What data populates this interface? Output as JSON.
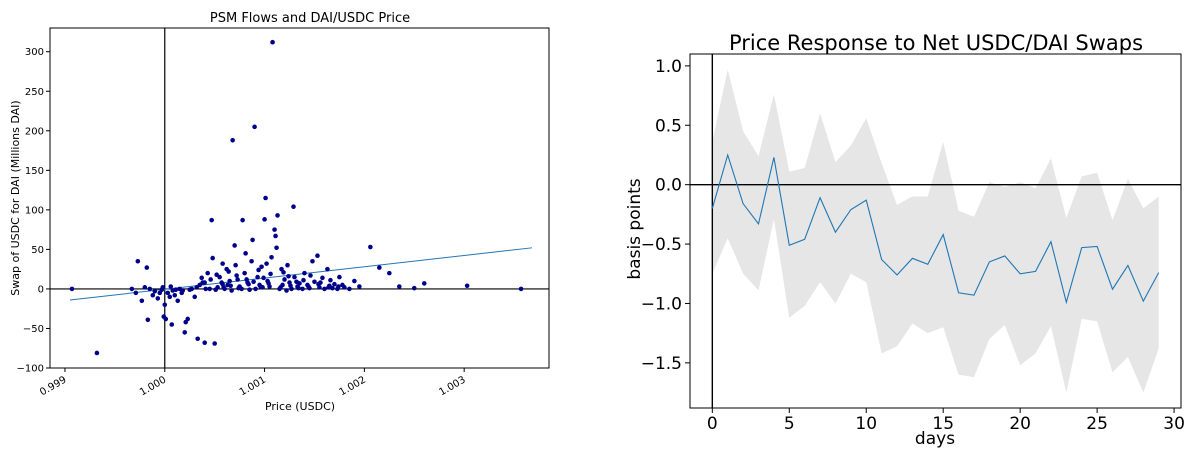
{
  "chart_data": [
    {
      "type": "scatter",
      "title": "PSM Flows and DAI/USDC Price",
      "xlabel": "Price (USDC)",
      "ylabel": "Swap of USDC for DAI (Millions DAI)",
      "xlim": [
        0.99885,
        1.00385
      ],
      "ylim": [
        -100,
        330
      ],
      "xticks": [
        0.999,
        1.0,
        1.001,
        1.002,
        1.003
      ],
      "xtick_labels": [
        "0.999",
        "1.000",
        "1.001",
        "1.002",
        "1.003"
      ],
      "yticks": [
        -100,
        -50,
        0,
        50,
        100,
        150,
        200,
        250,
        300
      ],
      "ytick_labels": [
        "−100",
        "−50",
        "0",
        "50",
        "100",
        "150",
        "200",
        "250",
        "300"
      ],
      "reference_lines": {
        "x": 1.0,
        "y": 0
      },
      "point_color": "#00008B",
      "fit_line": {
        "x": [
          0.99905,
          1.00368
        ],
        "y": [
          -14,
          52
        ],
        "color": "#1f77b4"
      },
      "points": [
        [
          0.99907,
          0
        ],
        [
          0.99932,
          -81
        ],
        [
          0.99967,
          0
        ],
        [
          0.99971,
          -5
        ],
        [
          0.99973,
          35
        ],
        [
          0.99977,
          -15
        ],
        [
          0.9998,
          2
        ],
        [
          0.99982,
          27
        ],
        [
          0.99983,
          -39
        ],
        [
          0.99985,
          0
        ],
        [
          0.99988,
          -8
        ],
        [
          0.9999,
          -3
        ],
        [
          0.99993,
          -12
        ],
        [
          0.99995,
          -5
        ],
        [
          0.99997,
          -1
        ],
        [
          0.99998,
          2
        ],
        [
          0.99999,
          -35
        ],
        [
          1.0,
          -20
        ],
        [
          1.00001,
          -38
        ],
        [
          1.00003,
          -5
        ],
        [
          1.00005,
          -10
        ],
        [
          1.00006,
          3
        ],
        [
          1.00007,
          -45
        ],
        [
          1.00008,
          -2
        ],
        [
          1.0001,
          -8
        ],
        [
          1.00011,
          -1
        ],
        [
          1.00013,
          -15
        ],
        [
          1.00015,
          0
        ],
        [
          1.00017,
          -5
        ],
        [
          1.00018,
          -2
        ],
        [
          1.0002,
          -55
        ],
        [
          1.00021,
          -42
        ],
        [
          1.00023,
          -38
        ],
        [
          1.00025,
          -1
        ],
        [
          1.00027,
          0
        ],
        [
          1.0003,
          -10
        ],
        [
          1.00032,
          2
        ],
        [
          1.00033,
          -63
        ],
        [
          1.00035,
          5
        ],
        [
          1.00037,
          14
        ],
        [
          1.00038,
          8
        ],
        [
          1.0004,
          -68
        ],
        [
          1.00041,
          0
        ],
        [
          1.00043,
          20
        ],
        [
          1.00045,
          0
        ],
        [
          1.00047,
          87
        ],
        [
          1.00048,
          39
        ],
        [
          1.0005,
          -69
        ],
        [
          1.00051,
          -1
        ],
        [
          1.00053,
          2
        ],
        [
          1.00055,
          15
        ],
        [
          1.00057,
          8
        ],
        [
          1.00058,
          32
        ],
        [
          1.0006,
          0
        ],
        [
          1.00062,
          25
        ],
        [
          1.00063,
          5
        ],
        [
          1.00065,
          10
        ],
        [
          1.00067,
          -2
        ],
        [
          1.00068,
          188
        ],
        [
          1.0007,
          55
        ],
        [
          1.00071,
          30
        ],
        [
          1.00073,
          12
        ],
        [
          1.00075,
          3
        ],
        [
          1.00077,
          0
        ],
        [
          1.00078,
          87
        ],
        [
          1.0008,
          20
        ],
        [
          1.00081,
          45
        ],
        [
          1.00083,
          8
        ],
        [
          1.00085,
          -1
        ],
        [
          1.00087,
          35
        ],
        [
          1.00088,
          62
        ],
        [
          1.0009,
          205
        ],
        [
          1.00091,
          0
        ],
        [
          1.00093,
          15
        ],
        [
          1.00095,
          5
        ],
        [
          1.00097,
          28
        ],
        [
          1.00098,
          2
        ],
        [
          1.001,
          88
        ],
        [
          1.00101,
          115
        ],
        [
          1.00103,
          10
        ],
        [
          1.00105,
          3
        ],
        [
          1.00107,
          40
        ],
        [
          1.00108,
          312
        ],
        [
          1.0011,
          75
        ],
        [
          1.00111,
          67
        ],
        [
          1.00113,
          93
        ],
        [
          1.00115,
          0
        ],
        [
          1.00117,
          25
        ],
        [
          1.00118,
          5
        ],
        [
          1.0012,
          12
        ],
        [
          1.00122,
          -2
        ],
        [
          1.00123,
          30
        ],
        [
          1.00125,
          8
        ],
        [
          1.00127,
          0
        ],
        [
          1.00129,
          104
        ],
        [
          1.0013,
          15
        ],
        [
          1.00133,
          3
        ],
        [
          1.00135,
          7
        ],
        [
          1.00138,
          0
        ],
        [
          1.0014,
          20
        ],
        [
          1.00143,
          5
        ],
        [
          1.00145,
          1
        ],
        [
          1.00148,
          35
        ],
        [
          1.0015,
          9
        ],
        [
          1.00153,
          42
        ],
        [
          1.00155,
          2
        ],
        [
          1.00158,
          14
        ],
        [
          1.0016,
          0
        ],
        [
          1.00163,
          25
        ],
        [
          1.00165,
          4
        ],
        [
          1.00168,
          1
        ],
        [
          1.0017,
          6
        ],
        [
          1.00173,
          0
        ],
        [
          1.00175,
          15
        ],
        [
          1.00178,
          5
        ],
        [
          1.0018,
          2
        ],
        [
          1.00185,
          0
        ],
        [
          1.0019,
          10
        ],
        [
          1.00195,
          3
        ],
        [
          1.00206,
          53
        ],
        [
          1.00215,
          27
        ],
        [
          1.00225,
          20
        ],
        [
          1.00235,
          3
        ],
        [
          1.0025,
          1
        ],
        [
          1.0026,
          7
        ],
        [
          1.00303,
          4
        ],
        [
          1.00357,
          0
        ],
        [
          1.0004,
          8
        ],
        [
          1.00046,
          12
        ],
        [
          1.00052,
          18
        ],
        [
          1.00058,
          6
        ],
        [
          1.00064,
          22
        ],
        [
          1.00072,
          17
        ],
        [
          1.00082,
          12
        ],
        [
          1.00094,
          24
        ],
        [
          1.00102,
          32
        ],
        [
          1.00106,
          19
        ],
        [
          1.00112,
          52
        ],
        [
          1.00119,
          21
        ],
        [
          1.00124,
          16
        ],
        [
          1.00132,
          9
        ],
        [
          1.00139,
          11
        ],
        [
          1.00146,
          17
        ],
        [
          1.00156,
          8
        ],
        [
          1.00166,
          11
        ],
        [
          1.00059,
          2
        ],
        [
          1.00066,
          4
        ],
        [
          1.00074,
          1
        ],
        [
          1.00084,
          6
        ],
        [
          1.00096,
          3
        ],
        [
          1.00104,
          7
        ],
        [
          1.00116,
          2
        ],
        [
          1.00126,
          4
        ],
        [
          1.00134,
          1
        ],
        [
          1.00144,
          3
        ],
        [
          1.00154,
          6
        ],
        [
          1.00164,
          2
        ],
        [
          1.00174,
          3
        ],
        [
          1.00089,
          9
        ],
        [
          1.00099,
          14
        ]
      ]
    },
    {
      "type": "line",
      "title": "Price Response to Net USDC/DAI Swaps",
      "xlabel": "days",
      "ylabel": "basis points",
      "xlim": [
        -1.45,
        30.45
      ],
      "ylim": [
        -1.88,
        1.1
      ],
      "xticks": [
        0,
        5,
        10,
        15,
        20,
        25,
        30
      ],
      "xtick_labels": [
        "0",
        "5",
        "10",
        "15",
        "20",
        "25",
        "30"
      ],
      "yticks": [
        1.0,
        0.5,
        0.0,
        -0.5,
        -1.0,
        -1.5
      ],
      "ytick_labels": [
        "1.0",
        "0.5",
        "0.0",
        "−0.5",
        "−1.0",
        "−1.5"
      ],
      "reference_lines": {
        "x": 0,
        "y": 0
      },
      "line_color": "#1f77b4",
      "band_color": "#e6e6e6",
      "x": [
        0,
        1,
        2,
        3,
        4,
        5,
        6,
        7,
        8,
        9,
        10,
        11,
        12,
        13,
        14,
        15,
        16,
        17,
        18,
        19,
        20,
        21,
        22,
        23,
        24,
        25,
        26,
        27,
        28,
        29
      ],
      "y": [
        -0.2,
        0.25,
        -0.16,
        -0.33,
        0.23,
        -0.51,
        -0.46,
        -0.11,
        -0.4,
        -0.21,
        -0.13,
        -0.63,
        -0.76,
        -0.62,
        -0.67,
        -0.42,
        -0.91,
        -0.93,
        -0.65,
        -0.6,
        -0.75,
        -0.73,
        -0.48,
        -0.99,
        -0.53,
        -0.52,
        -0.88,
        -0.68,
        -0.98,
        -0.74
      ],
      "upper": [
        0.36,
        0.97,
        0.45,
        0.24,
        0.76,
        0.11,
        0.14,
        0.6,
        0.19,
        0.33,
        0.56,
        0.18,
        -0.17,
        -0.1,
        -0.1,
        0.36,
        -0.22,
        -0.27,
        0.02,
        -0.02,
        0.02,
        -0.03,
        0.22,
        -0.28,
        0.07,
        0.1,
        -0.3,
        0.05,
        -0.2,
        -0.1
      ],
      "lower": [
        -0.75,
        -0.45,
        -0.75,
        -0.89,
        -0.29,
        -1.12,
        -1.02,
        -0.82,
        -1.0,
        -0.75,
        -0.82,
        -1.42,
        -1.36,
        -1.17,
        -1.25,
        -1.2,
        -1.6,
        -1.62,
        -1.3,
        -1.18,
        -1.52,
        -1.42,
        -1.19,
        -1.75,
        -1.13,
        -1.15,
        -1.58,
        -1.45,
        -1.75,
        -1.38
      ]
    }
  ]
}
